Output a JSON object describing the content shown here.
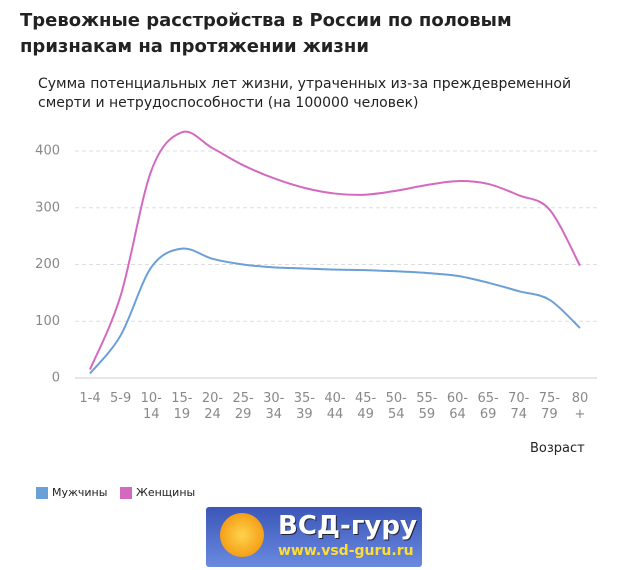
{
  "chart_data": {
    "type": "line",
    "title": "Тревожные расстройства в России по половым признакам на протяжении жизни",
    "subtitle": "Сумма потенциальных лет жизни, утраченных из-за преждевременной смерти и нетрудоспособности (на 100000 человек)",
    "x_label": "Возраст",
    "categories": [
      "1-4",
      "5-9",
      "10-14",
      "15-19",
      "20-24",
      "25-29",
      "30-34",
      "35-39",
      "40-44",
      "45-49",
      "50-54",
      "55-59",
      "60-64",
      "65-69",
      "70-74",
      "75-79",
      "80+"
    ],
    "series": [
      {
        "name": "Мужчины",
        "color": "#6a9fd8",
        "values": [
          8,
          75,
          195,
          228,
          210,
          200,
          195,
          193,
          191,
          190,
          188,
          185,
          180,
          168,
          153,
          138,
          88
        ]
      },
      {
        "name": "Женщины",
        "color": "#d46ac0",
        "values": [
          15,
          145,
          365,
          433,
          405,
          375,
          352,
          335,
          325,
          323,
          330,
          340,
          347,
          342,
          322,
          297,
          198
        ]
      }
    ],
    "ylim": [
      0,
      440
    ],
    "yticks": [
      0,
      100,
      200,
      300,
      400
    ],
    "grid": true
  },
  "logo": {
    "name": "ВСД-гуру",
    "url": "www.vsd-guru.ru"
  }
}
